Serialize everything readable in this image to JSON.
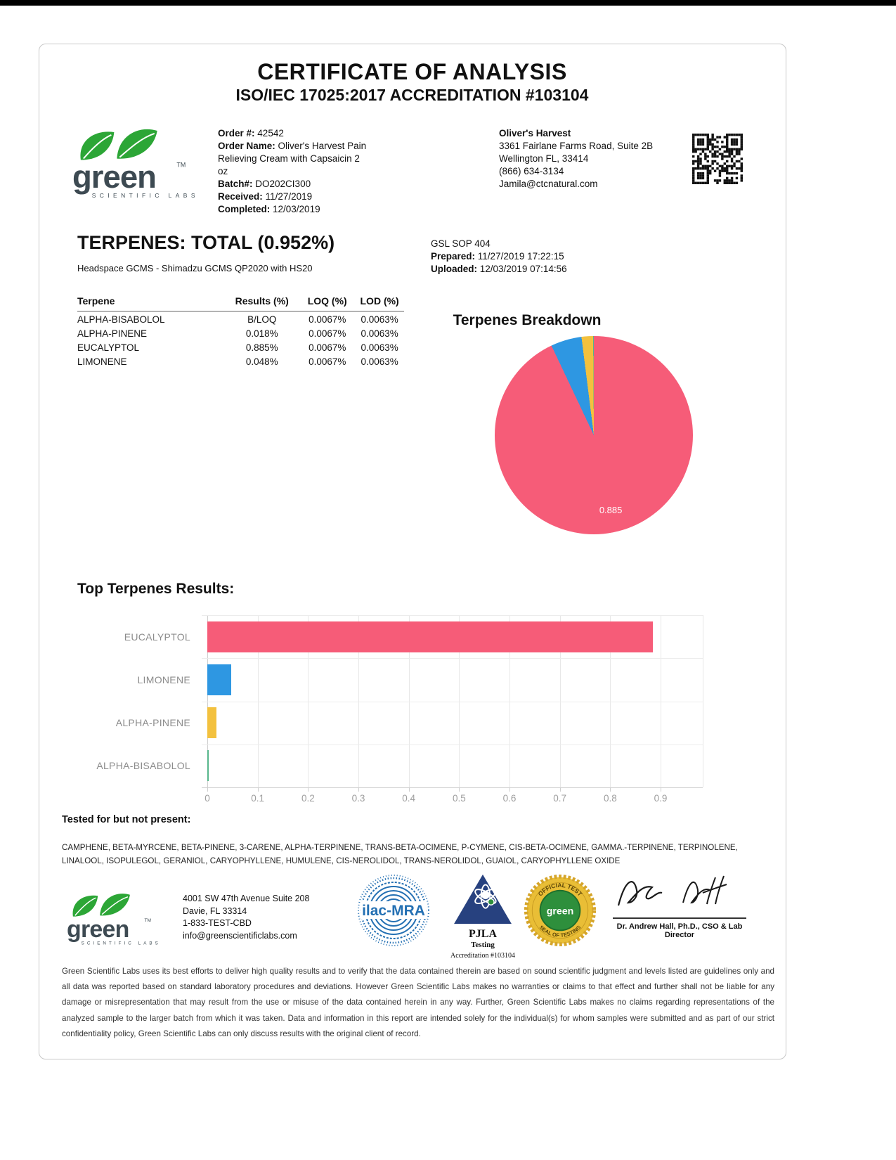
{
  "page": {
    "title": "CERTIFICATE OF ANALYSIS",
    "subtitle": "ISO/IEC 17025:2017 ACCREDITATION #103104"
  },
  "logo": {
    "word": "green",
    "tagline": "SCIENTIFIC LABS",
    "tm": "TM"
  },
  "order_info": {
    "order_label": "Order #:",
    "order_value": "42542",
    "name_label": "Order Name:",
    "name_value": "Oliver's Harvest Pain Relieving Cream with Capsaicin 2 oz",
    "batch_label": "Batch#:",
    "batch_value": "DO202CI300",
    "received_label": "Received:",
    "received_value": "11/27/2019",
    "completed_label": "Completed:",
    "completed_value": "12/03/2019"
  },
  "client": {
    "name": "Oliver's Harvest",
    "address1": "3361 Fairlane Farms Road, Suite 2B",
    "address2": "Wellington FL, 33414",
    "phone": "(866) 634-3134",
    "email": "Jamila@ctcnatural.com"
  },
  "terpenes_section": {
    "heading": "TERPENES: TOTAL (0.952%)",
    "method": "Headspace GCMS - Shimadzu GCMS QP2020 with HS20",
    "sop": "GSL SOP 404",
    "prepared_label": "Prepared:",
    "prepared_value": "11/27/2019 17:22:15",
    "uploaded_label": "Uploaded:",
    "uploaded_value": "12/03/2019 07:14:56"
  },
  "results_table": {
    "headers": [
      "Terpene",
      "Results (%)",
      "LOQ (%)",
      "LOD (%)"
    ],
    "rows": [
      [
        "ALPHA-BISABOLOL",
        "B/LOQ",
        "0.0067%",
        "0.0063%"
      ],
      [
        "ALPHA-PINENE",
        "0.018%",
        "0.0067%",
        "0.0063%"
      ],
      [
        "EUCALYPTOL",
        "0.885%",
        "0.0067%",
        "0.0063%"
      ],
      [
        "LIMONENE",
        "0.048%",
        "0.0067%",
        "0.0063%"
      ]
    ]
  },
  "chart_data": [
    {
      "type": "pie",
      "title": "Terpenes Breakdown",
      "slices": [
        {
          "label": "EUCALYPTOL",
          "value": 0.885,
          "color": "#F65C78",
          "data_label": "0.885"
        },
        {
          "label": "LIMONENE",
          "value": 0.048,
          "color": "#2E97E2"
        },
        {
          "label": "ALPHA-PINENE",
          "value": 0.018,
          "color": "#F3C13E"
        },
        {
          "label": "ALPHA-BISABOLOL (B/LOQ)",
          "value": 0.001,
          "color": "#56B68B"
        }
      ],
      "legend": "none"
    },
    {
      "type": "bar",
      "orientation": "horizontal",
      "title": "Top Terpenes Results:",
      "categories": [
        "EUCALYPTOL",
        "LIMONENE",
        "ALPHA-PINENE",
        "ALPHA-BISABOLOL"
      ],
      "values": [
        0.885,
        0.048,
        0.018,
        0.001
      ],
      "colors": [
        "#F65C78",
        "#2E97E2",
        "#F3C13E",
        "#56B68B"
      ],
      "xlim": [
        0,
        0.9
      ],
      "xticks": [
        "0",
        "0.1",
        "0.2",
        "0.3",
        "0.4",
        "0.5",
        "0.6",
        "0.7",
        "0.8",
        "0.9"
      ],
      "grid": "vertical"
    }
  ],
  "tested_not_present": {
    "heading": "Tested for but not present:",
    "items": "CAMPHENE, BETA-MYRCENE, BETA-PINENE, 3-CARENE, ALPHA-TERPINENE, TRANS-BETA-OCIMENE, P-CYMENE, CIS-BETA-OCIMENE, GAMMA.-TERPINENE, TERPINOLENE, LINALOOL, ISOPULEGOL, GERANIOL, CARYOPHYLLENE, HUMULENE, CIS-NEROLIDOL, TRANS-NEROLIDOL, GUAIOL, CARYOPHYLLENE OXIDE"
  },
  "footer": {
    "address": [
      "4001 SW 47th Avenue Suite 208",
      "Davie, FL 33314",
      "1-833-TEST-CBD",
      "info@greenscientificlabs.com"
    ],
    "ilac_label": "ilac-MRA",
    "pjla": {
      "name": "PJLA",
      "sub": "Testing",
      "accreditation": "Accreditation #103104"
    },
    "seal": {
      "top": "OFFICIAL TEST",
      "center": "green",
      "bottom": "SEAL OF TESTING"
    },
    "signatory": "Dr. Andrew Hall, Ph.D., CSO & Lab Director"
  },
  "disclaimer": "Green Scientific Labs uses its best efforts to deliver high quality results and to verify that the data contained therein are based on sound scientific judgment and levels listed are guidelines only and all data was reported based on standard laboratory procedures and deviations. However Green Scientific Labs makes no warranties or claims to that effect and further shall not be liable for any damage or misrepresentation that may result from the use or misuse of the data contained herein in any way. Further, Green Scientific Labs makes no claims regarding representations of the analyzed sample to the larger batch from which it was taken. Data and information in this report are intended solely for the individual(s) for whom samples were submitted and as part of our strict confidentiality policy, Green Scientific Labs can only discuss results with the original client of record."
}
